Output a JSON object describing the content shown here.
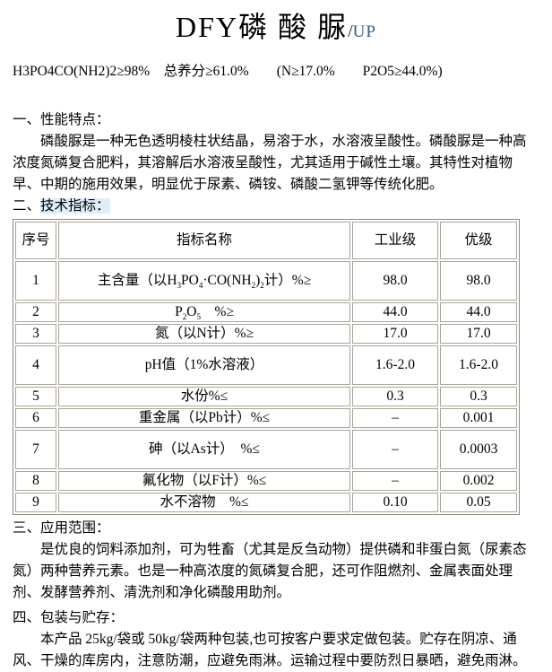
{
  "title": {
    "main": "DFY磷 酸 脲",
    "slash": "/",
    "suffix": "UP"
  },
  "spec_line": "H3PO4CO(NH2)2≥98%　总养分≥61.0%　　(N≥17.0%　　P2O5≥44.0%)",
  "section1": {
    "heading": "一、性能特点：",
    "body": "磷酸脲是一种无色透明棱柱状结晶，易溶于水，水溶液呈酸性。磷酸脲是一种高浓度氮磷复合肥料，其溶解后水溶液呈酸性，尤其适用于碱性土壤。其特性对植物早、中期的施用效果，明显优于尿素、磷铵、磷酸二氢钾等传统化肥。"
  },
  "section2": {
    "heading_prefix": "二、",
    "heading_rest": "技术指标：",
    "highlight_color": "#ddeef9"
  },
  "table": {
    "headers": [
      "序号",
      "指标名称",
      "工业级",
      "优级"
    ],
    "rows": [
      {
        "no": "1",
        "name_parts": [
          {
            "t": "主含量（以H"
          },
          {
            "t": "3",
            "sub": true
          },
          {
            "t": "PO"
          },
          {
            "t": "4",
            "sub": true
          },
          {
            "t": "·CO(NH"
          },
          {
            "t": "2",
            "sub": true
          },
          {
            "t": ")"
          },
          {
            "t": "2",
            "sub": true
          },
          {
            "t": "计）%≥"
          }
        ],
        "industrial": "98.0",
        "premium": "98.0"
      },
      {
        "no": "2",
        "name_parts": [
          {
            "t": "P"
          },
          {
            "t": "2",
            "sub": true
          },
          {
            "t": "O"
          },
          {
            "t": "5",
            "sub": true
          },
          {
            "t": "　%≥"
          }
        ],
        "industrial": "44.0",
        "premium": "44.0"
      },
      {
        "no": "3",
        "name_parts": [
          {
            "t": "氮（以N计）%≥"
          }
        ],
        "industrial": "17.0",
        "premium": "17.0"
      },
      {
        "no": "4",
        "name_parts": [
          {
            "t": "pH值（1%水溶液）"
          }
        ],
        "industrial": "1.6-2.0",
        "premium": "1.6-2.0"
      },
      {
        "no": "5",
        "name_parts": [
          {
            "t": "水份%≤"
          }
        ],
        "industrial": "0.3",
        "premium": "0.3"
      },
      {
        "no": "6",
        "name_parts": [
          {
            "t": "重金属（以Pb计）%≤"
          }
        ],
        "industrial": "–",
        "premium": "0.001"
      },
      {
        "no": "7",
        "name_parts": [
          {
            "t": "砷（以As计）　%≤"
          }
        ],
        "industrial": "–",
        "premium": "0.0003"
      },
      {
        "no": "8",
        "name_parts": [
          {
            "t": "氟化物（以F计）%≤"
          }
        ],
        "industrial": "–",
        "premium": "0.002"
      },
      {
        "no": "9",
        "name_parts": [
          {
            "t": "水不溶物　%≤"
          }
        ],
        "industrial": "0.10",
        "premium": "0.05"
      }
    ]
  },
  "section3": {
    "heading": "三、应用范围：",
    "body": "是优良的饲料添加剂，可为牲畜（尤其是反刍动物）提供磷和非蛋白氮（尿素态氮）两种营养元素。也是一种高浓度的氮磷复合肥，还可作阻燃剂、金属表面处理剂、发酵营养剂、清洗剂和净化磷酸用助剂。"
  },
  "section4": {
    "heading": "四、包装与贮存：",
    "body": "本产品 25kg/袋或 50kg/袋两种包装,也可按客户要求定做包装。贮存在阴凉、通风、干燥的库房内，注意防潮，应避免雨淋。运输过程中要防烈日暴晒，避免雨淋。"
  }
}
